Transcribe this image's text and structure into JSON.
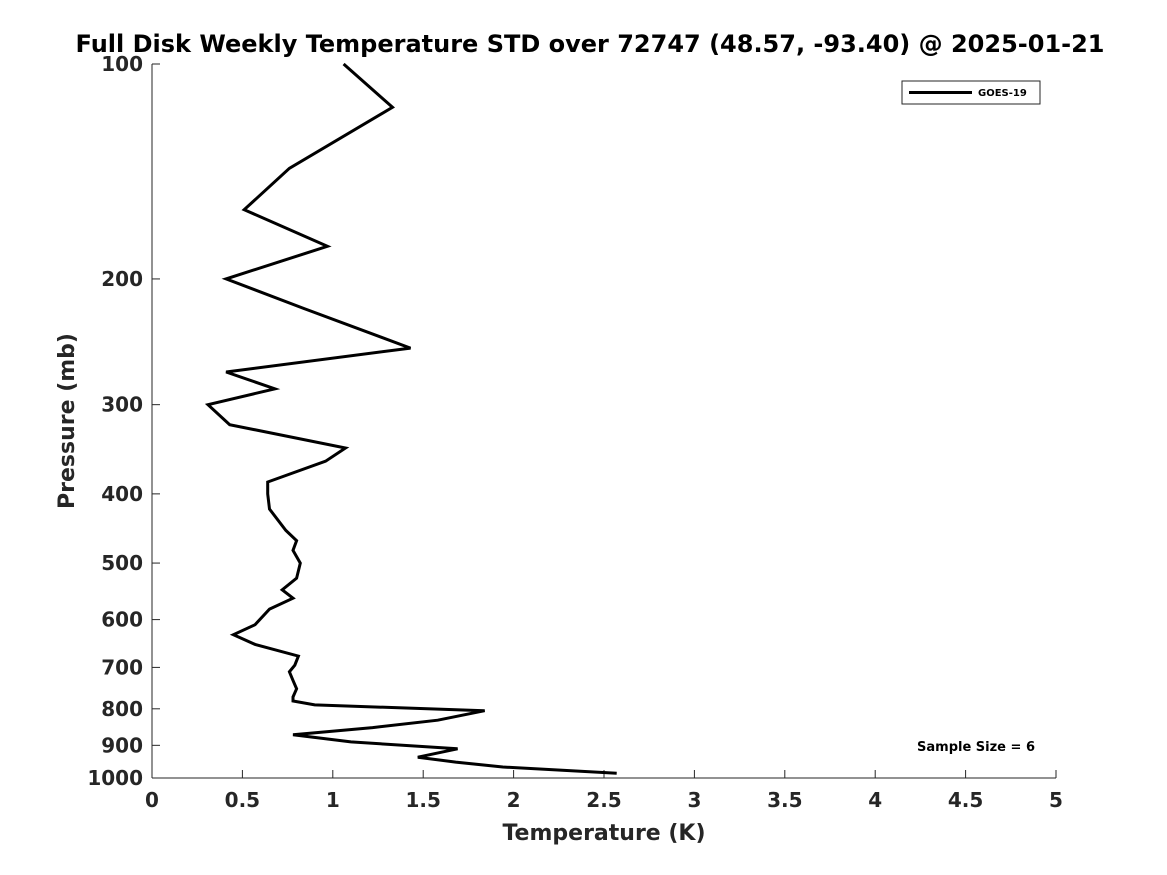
{
  "chart_data": {
    "type": "line",
    "title": "Full Disk Weekly Temperature STD over 72747 (48.57, -93.40) @ 2025-01-21",
    "xlabel": "Temperature (K)",
    "ylabel": "Pressure (mb)",
    "xlim": [
      0,
      5
    ],
    "ylim": [
      100,
      1000
    ],
    "yscale": "log",
    "y_reversed": true,
    "x_ticks": [
      0,
      0.5,
      1,
      1.5,
      2,
      2.5,
      3,
      3.5,
      4,
      4.5,
      5
    ],
    "x_tick_labels": [
      "0",
      "0.5",
      "1",
      "1.5",
      "2",
      "2.5",
      "3",
      "3.5",
      "4",
      "4.5",
      "5"
    ],
    "y_ticks": [
      100,
      200,
      300,
      400,
      500,
      600,
      700,
      800,
      900,
      1000
    ],
    "y_tick_labels": [
      "100",
      "200",
      "300",
      "400",
      "500",
      "600",
      "700",
      "800",
      "900",
      "1000"
    ],
    "legend_position": "top-right",
    "series": [
      {
        "name": "GOES-19",
        "color": "#000000",
        "x": [
          1.06,
          1.33,
          0.76,
          0.51,
          0.97,
          0.41,
          0.84,
          1.43,
          0.41,
          0.68,
          0.31,
          0.43,
          1.07,
          0.96,
          0.64,
          0.64,
          0.65,
          0.74,
          0.8,
          0.78,
          0.82,
          0.8,
          0.72,
          0.78,
          0.65,
          0.57,
          0.45,
          0.57,
          0.81,
          0.79,
          0.76,
          0.78,
          0.8,
          0.78,
          0.78,
          0.9,
          1.84,
          1.58,
          1.22,
          0.78,
          1.1,
          1.69,
          1.47,
          1.68,
          1.94,
          2.57
        ],
        "y": [
          100,
          115,
          140,
          160,
          180,
          200,
          220,
          250,
          270,
          285,
          300,
          320,
          345,
          360,
          385,
          400,
          420,
          450,
          465,
          480,
          500,
          525,
          545,
          560,
          580,
          610,
          630,
          650,
          675,
          695,
          710,
          730,
          750,
          770,
          780,
          790,
          805,
          830,
          850,
          870,
          890,
          910,
          935,
          950,
          965,
          985
        ]
      }
    ],
    "annotation": "Sample Size = 6"
  }
}
